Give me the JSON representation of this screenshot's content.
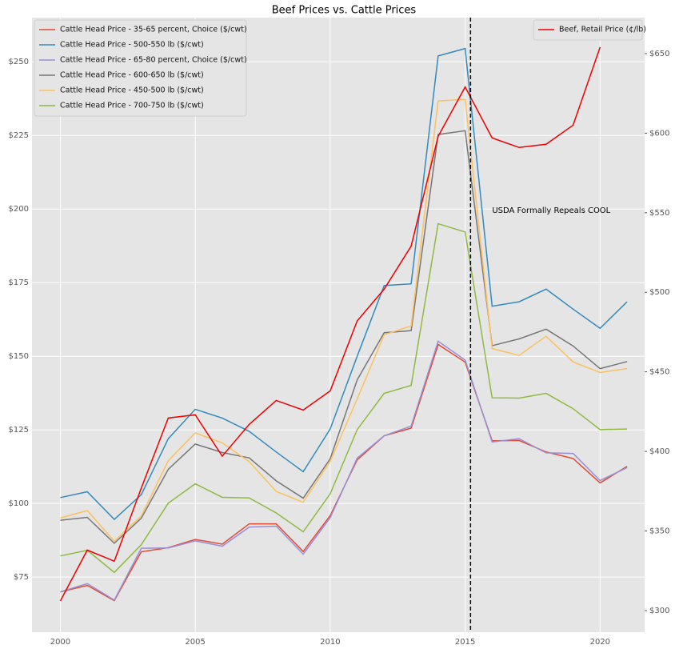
{
  "chart_data": {
    "type": "line",
    "title": "Beef Prices vs. Cattle Prices",
    "x": [
      2000,
      2001,
      2002,
      2003,
      2004,
      2005,
      2006,
      2007,
      2008,
      2009,
      2010,
      2011,
      2012,
      2013,
      2014,
      2015,
      2016,
      2017,
      2018,
      2019,
      2020,
      2021
    ],
    "series": [
      {
        "name": "Cattle Head Price - 35-65 percent, Choice ($/cwt)",
        "color": "#E24A33",
        "values": [
          70,
          72.2,
          67,
          83.6,
          85,
          87.8,
          86.2,
          93.1,
          93.1,
          83.7,
          95.9,
          114.8,
          123,
          125.6,
          154,
          148,
          121.3,
          121.4,
          117.5,
          115.3,
          107,
          112.6
        ]
      },
      {
        "name": "Cattle Head Price - 500-550 lb ($/cwt)",
        "color": "#348ABD",
        "values": [
          102,
          104,
          94.6,
          103,
          122,
          132,
          129,
          124.5,
          117.5,
          110.8,
          125.3,
          150,
          174,
          174.6,
          252,
          254.5,
          167,
          168.5,
          172.8,
          166,
          159.5,
          168.5
        ]
      },
      {
        "name": "Cattle Head Price - 65-80 percent, Choice ($/cwt)",
        "color": "#988ED5",
        "values": [
          70,
          72.8,
          67.2,
          84.8,
          84.9,
          87.3,
          85.5,
          92,
          92.3,
          82.8,
          95.2,
          115.4,
          123,
          126.3,
          155.1,
          148.7,
          120.9,
          122,
          117.2,
          117,
          107.8,
          112.2
        ]
      },
      {
        "name": "Cattle Head Price - 600-650 lb ($/cwt)",
        "color": "#777777",
        "values": [
          94.3,
          95.3,
          86.5,
          95,
          111.6,
          120.2,
          117.3,
          115.5,
          107.7,
          101.8,
          115.2,
          142,
          158,
          158.7,
          225.3,
          226.6,
          153.6,
          155.9,
          159.2,
          153.5,
          145.8,
          148.2
        ]
      },
      {
        "name": "Cattle Head Price - 450-500 lb ($/cwt)",
        "color": "#FBC15E",
        "values": [
          95.1,
          97.6,
          87.2,
          95.8,
          114.5,
          124,
          120.6,
          114.2,
          104.1,
          100.4,
          114.3,
          135.5,
          157.3,
          160.3,
          236.7,
          237.2,
          152.6,
          150.3,
          156.8,
          148.1,
          144.5,
          145.8
        ]
      },
      {
        "name": "Cattle Head Price - 700-750 lb ($/cwt)",
        "color": "#8EBA42",
        "values": [
          82.2,
          84.1,
          76.6,
          86,
          100.1,
          106.7,
          102.1,
          101.9,
          96.8,
          90.4,
          103.3,
          125.1,
          137.4,
          140.1,
          195,
          192.2,
          135.9,
          135.8,
          137.4,
          132.2,
          125.1,
          125.3
        ]
      },
      {
        "name": "Beef, Retail Price (¢/lb)",
        "color": "#EE0000",
        "axis": "y2",
        "values": [
          306,
          338,
          331,
          377,
          421,
          423,
          397,
          417,
          432,
          426,
          438,
          482,
          502,
          529,
          598,
          629,
          597,
          591,
          593,
          605,
          654,
          null
        ]
      }
    ],
    "xlim": [
      1998.95,
      2021.65
    ],
    "xticks": [
      2000,
      2005,
      2010,
      2015,
      2020
    ],
    "ylim": [
      56.3,
      265
    ],
    "yticks": [
      {
        "value": 75,
        "label": "$75"
      },
      {
        "value": 100,
        "label": "$100"
      },
      {
        "value": 125,
        "label": "$125"
      },
      {
        "value": 150,
        "label": "$150"
      },
      {
        "value": 175,
        "label": "$175"
      },
      {
        "value": 200,
        "label": "$200"
      },
      {
        "value": 225,
        "label": "$225"
      },
      {
        "value": 250,
        "label": "$250"
      }
    ],
    "y2lim": [
      286.4,
      672.6
    ],
    "y2ticks": [
      {
        "value": 300,
        "label": "$300"
      },
      {
        "value": 350,
        "label": "$350"
      },
      {
        "value": 400,
        "label": "$400"
      },
      {
        "value": 450,
        "label": "$450"
      },
      {
        "value": 500,
        "label": "$500"
      },
      {
        "value": 550,
        "label": "$550"
      },
      {
        "value": 600,
        "label": "$600"
      },
      {
        "value": 650,
        "label": "$650"
      }
    ],
    "grid": true,
    "legend": "upper left",
    "legend_y2": "upper right",
    "vline": 2015.2,
    "annotation": {
      "text": "USDA Formally Repeals COOL",
      "x": 2016,
      "y": 199.5
    }
  }
}
